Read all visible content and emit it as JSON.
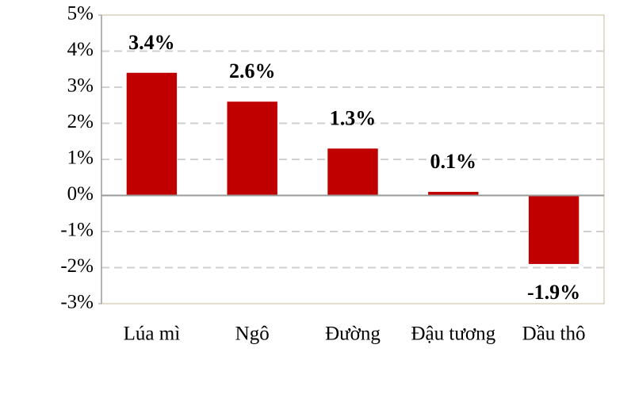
{
  "chart_data": {
    "type": "bar",
    "categories": [
      "Lúa mì",
      "Ngô",
      "Đường",
      "Đậu tương",
      "Dầu thô"
    ],
    "values": [
      3.4,
      2.6,
      1.3,
      0.1,
      -1.9
    ],
    "value_labels": [
      "3.4%",
      "2.6%",
      "1.3%",
      "0.1%",
      "-1.9%"
    ],
    "color": "#c00000",
    "ylim": [
      -3,
      5
    ],
    "yticks": [
      {
        "value": -3,
        "label": "-3%"
      },
      {
        "value": -2,
        "label": "-2%"
      },
      {
        "value": -1,
        "label": "-1%"
      },
      {
        "value": 0,
        "label": "0%"
      },
      {
        "value": 1,
        "label": "1%"
      },
      {
        "value": 2,
        "label": "2%"
      },
      {
        "value": 3,
        "label": "3%"
      },
      {
        "value": 4,
        "label": "4%"
      },
      {
        "value": 5,
        "label": "5%"
      }
    ],
    "grid": true
  }
}
